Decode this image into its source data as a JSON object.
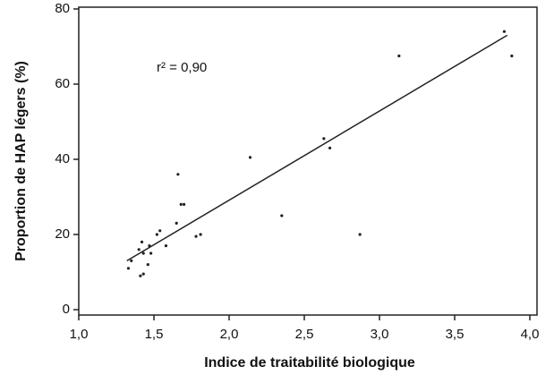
{
  "chart_data": {
    "type": "scatter",
    "x_label": "Indice de traitabilité biologique",
    "y_label": "Proportion de HAP légers (%)",
    "annotation": "r² = 0,90",
    "color": "#222222",
    "x": [
      1.33,
      1.35,
      1.4,
      1.42,
      1.43,
      1.41,
      1.43,
      1.46,
      1.47,
      1.48,
      1.52,
      1.54,
      1.58,
      1.65,
      1.66,
      1.68,
      1.7,
      1.78,
      1.81,
      2.14,
      2.35,
      2.63,
      2.67,
      2.87,
      3.13,
      3.83,
      3.88
    ],
    "values": [
      11,
      13,
      16,
      18,
      15,
      9,
      9.5,
      12,
      17,
      15,
      20,
      21,
      17,
      23,
      36,
      28,
      28,
      19.5,
      20,
      40.5,
      25,
      45.5,
      43,
      20,
      67.5,
      74,
      67.5
    ],
    "trendline": {
      "x": [
        1.32,
        3.85
      ],
      "values": [
        13,
        73
      ]
    },
    "xlim": [
      1,
      4
    ],
    "ylim": [
      0,
      80
    ],
    "xticks": [
      {
        "value": 1,
        "label": "1,0"
      },
      {
        "value": 1.5,
        "label": "1,5"
      },
      {
        "value": 2,
        "label": "2,0"
      },
      {
        "value": 2.5,
        "label": "2,5"
      },
      {
        "value": 3,
        "label": "3,0"
      },
      {
        "value": 3.5,
        "label": "3,5"
      },
      {
        "value": 4,
        "label": "4,0"
      }
    ],
    "yticks": [
      0,
      20,
      40,
      60,
      80
    ]
  }
}
